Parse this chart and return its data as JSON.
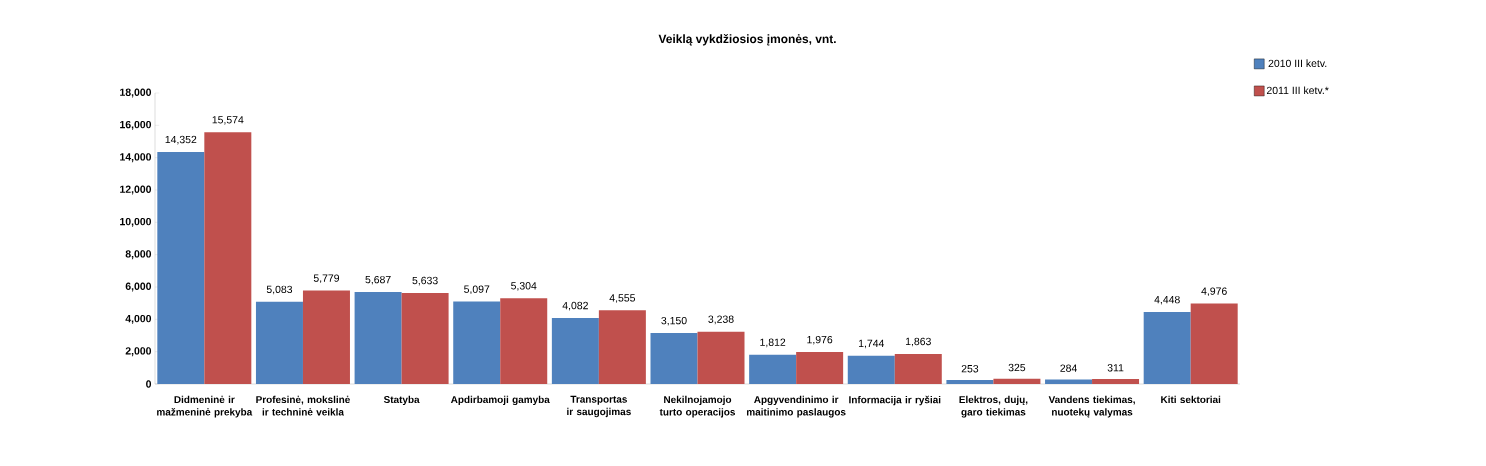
{
  "chart_data": {
    "type": "bar",
    "title": "Veiklą vykdžiosios įmonės, vnt.",
    "categories": [
      "Didmeninė ir mažmeninė prekyba",
      "Profesinė, mokslinė ir techninė veikla",
      "Statyba",
      "Apdirbamoji gamyba",
      "Transportas ir saugojimas",
      "Nekilnojamojo turto operacijos",
      "Apgyvendinimo ir maitinimo paslaugos",
      "Informacija ir ryšiai",
      "Elektros, dujų, garo tiekimas",
      "Vandens tiekimas, nuotekų valymas",
      "Kiti sektoriai"
    ],
    "series": [
      {
        "name": "2010 III ketv.",
        "color": "#4f81bd",
        "values": [
          14352,
          5083,
          5687,
          5097,
          4082,
          3150,
          1812,
          1744,
          253,
          284,
          4448
        ],
        "value_labels": [
          "14,352",
          "5,083",
          "5,687",
          "5,097",
          "4,082",
          "3,150",
          "1,812",
          "1,744",
          "253",
          "284",
          "4,448"
        ]
      },
      {
        "name": "2011 III ketv.*",
        "color": "#c0504d",
        "values": [
          15574,
          5779,
          5633,
          5304,
          4555,
          3238,
          1976,
          1863,
          325,
          311,
          4976
        ],
        "value_labels": [
          "15,574",
          "5,779",
          "5,633",
          "5,304",
          "4,555",
          "3,238",
          "1,976",
          "1,863",
          "325",
          "311",
          "4,976"
        ]
      }
    ],
    "ylim": [
      0,
      18000
    ],
    "yticks": [
      {
        "value": 0,
        "label": "0"
      },
      {
        "value": 2000,
        "label": "2,000"
      },
      {
        "value": 4000,
        "label": "4,000"
      },
      {
        "value": 6000,
        "label": "6,000"
      },
      {
        "value": 8000,
        "label": "8,000"
      },
      {
        "value": 10000,
        "label": "10,000"
      },
      {
        "value": 12000,
        "label": "12,000"
      },
      {
        "value": 14000,
        "label": "14,000"
      },
      {
        "value": 16000,
        "label": "16,000"
      },
      {
        "value": 18000,
        "label": "18,000"
      }
    ],
    "legend": "top right",
    "grid": false
  }
}
